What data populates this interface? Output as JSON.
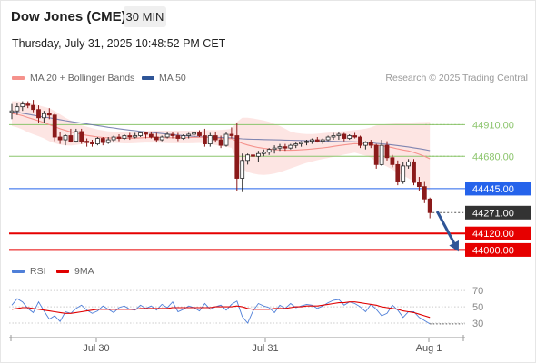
{
  "header": {
    "instrument": "Dow Jones (CME)",
    "timeframe": "30 MIN",
    "timestamp": "Thursday, July 31, 2025 10:48:52 PM CET"
  },
  "credit": "Research © 2025 Trading Central",
  "colors": {
    "candle_up": "#2b2b2b",
    "candle_down": "#8b1a1a",
    "bollinger_fill": "#fde0de",
    "ma20": "#f5928c",
    "ma50": "#6a74a8",
    "resistance": "#8cc56d",
    "pivot": "#2563eb",
    "support": "#e60000",
    "last_price_bg": "#333333",
    "arrow": "#2f5597",
    "rsi": "#4f7fd8",
    "rsi_ma": "#e00000"
  },
  "chart_data": [
    {
      "type": "candlestick",
      "legend": [
        "MA 20 + Bollinger Bands",
        "MA 50"
      ],
      "x_ticks": [
        "Jul 30",
        "Jul 31",
        "Aug 1"
      ],
      "ylim": [
        43950,
        45130
      ],
      "levels": [
        {
          "label": "44910.00",
          "value": 44910,
          "kind": "resistance"
        },
        {
          "label": "44680.00",
          "value": 44680,
          "kind": "resistance"
        },
        {
          "label": "44445.00",
          "value": 44445,
          "kind": "pivot"
        },
        {
          "label": "44120.00",
          "value": 44120,
          "kind": "support"
        },
        {
          "label": "44000.00",
          "value": 44000,
          "kind": "support"
        }
      ],
      "last_price": {
        "label": "44271.00",
        "value": 44271
      },
      "forecast_arrow": {
        "from": 44280,
        "to": 44010
      },
      "candles": [
        [
          45000,
          45060,
          44950,
          45010
        ],
        [
          45010,
          45070,
          44980,
          45040
        ],
        [
          45040,
          45080,
          45010,
          45060
        ],
        [
          45060,
          45080,
          45030,
          45050
        ],
        [
          45050,
          45090,
          45000,
          45020
        ],
        [
          45020,
          45050,
          44920,
          44960
        ],
        [
          44960,
          45010,
          44920,
          44990
        ],
        [
          44990,
          45030,
          44950,
          44980
        ],
        [
          44980,
          44990,
          44790,
          44820
        ],
        [
          44820,
          44860,
          44770,
          44800
        ],
        [
          44800,
          44840,
          44760,
          44830
        ],
        [
          44830,
          44880,
          44780,
          44790
        ],
        [
          44790,
          44880,
          44780,
          44860
        ],
        [
          44860,
          44880,
          44770,
          44790
        ],
        [
          44790,
          44810,
          44750,
          44780
        ],
        [
          44780,
          44800,
          44750,
          44770
        ],
        [
          44770,
          44820,
          44760,
          44810
        ],
        [
          44810,
          44820,
          44760,
          44780
        ],
        [
          44780,
          44820,
          44770,
          44800
        ],
        [
          44800,
          44830,
          44780,
          44820
        ],
        [
          44820,
          44840,
          44790,
          44810
        ],
        [
          44810,
          44840,
          44800,
          44830
        ],
        [
          44830,
          44850,
          44800,
          44820
        ],
        [
          44820,
          44850,
          44810,
          44830
        ],
        [
          44830,
          44860,
          44820,
          44850
        ],
        [
          44850,
          44860,
          44810,
          44840
        ],
        [
          44840,
          44860,
          44810,
          44820
        ],
        [
          44820,
          44850,
          44780,
          44800
        ],
        [
          44800,
          44830,
          44790,
          44820
        ],
        [
          44820,
          44860,
          44810,
          44840
        ],
        [
          44840,
          44860,
          44810,
          44830
        ],
        [
          44830,
          44850,
          44790,
          44810
        ],
        [
          44810,
          44840,
          44800,
          44830
        ],
        [
          44830,
          44850,
          44810,
          44840
        ],
        [
          44840,
          44860,
          44820,
          44850
        ],
        [
          44850,
          44870,
          44820,
          44830
        ],
        [
          44830,
          44880,
          44750,
          44770
        ],
        [
          44770,
          44850,
          44750,
          44830
        ],
        [
          44830,
          44860,
          44780,
          44800
        ],
        [
          44800,
          44830,
          44740,
          44760
        ],
        [
          44760,
          44860,
          44750,
          44840
        ],
        [
          44840,
          44890,
          44810,
          44830
        ],
        [
          44830,
          44920,
          44430,
          44520
        ],
        [
          44520,
          44700,
          44420,
          44650
        ],
        [
          44650,
          44700,
          44620,
          44690
        ],
        [
          44690,
          44720,
          44630,
          44680
        ],
        [
          44680,
          44720,
          44640,
          44700
        ],
        [
          44700,
          44730,
          44680,
          44710
        ],
        [
          44710,
          44740,
          44690,
          44730
        ],
        [
          44730,
          44760,
          44700,
          44740
        ],
        [
          44740,
          44770,
          44720,
          44750
        ],
        [
          44750,
          44770,
          44720,
          44740
        ],
        [
          44740,
          44770,
          44730,
          44760
        ],
        [
          44760,
          44780,
          44740,
          44770
        ],
        [
          44770,
          44790,
          44750,
          44780
        ],
        [
          44780,
          44800,
          44760,
          44790
        ],
        [
          44790,
          44810,
          44770,
          44800
        ],
        [
          44800,
          44820,
          44780,
          44790
        ],
        [
          44790,
          44810,
          44770,
          44800
        ],
        [
          44800,
          44830,
          44790,
          44820
        ],
        [
          44820,
          44850,
          44800,
          44830
        ],
        [
          44830,
          44860,
          44800,
          44840
        ],
        [
          44840,
          44850,
          44790,
          44810
        ],
        [
          44810,
          44840,
          44800,
          44830
        ],
        [
          44830,
          44850,
          44810,
          44820
        ],
        [
          44820,
          44830,
          44740,
          44760
        ],
        [
          44760,
          44790,
          44730,
          44780
        ],
        [
          44780,
          44800,
          44740,
          44760
        ],
        [
          44760,
          44770,
          44590,
          44620
        ],
        [
          44620,
          44800,
          44610,
          44760
        ],
        [
          44760,
          44790,
          44650,
          44670
        ],
        [
          44670,
          44690,
          44600,
          44620
        ],
        [
          44620,
          44650,
          44470,
          44500
        ],
        [
          44500,
          44640,
          44480,
          44610
        ],
        [
          44610,
          44660,
          44590,
          44640
        ],
        [
          44640,
          44660,
          44470,
          44490
        ],
        [
          44490,
          44530,
          44430,
          44460
        ],
        [
          44460,
          44500,
          44340,
          44370
        ],
        [
          44370,
          44380,
          44230,
          44271
        ]
      ],
      "ma20": [
        44990,
        44985,
        44975,
        44962,
        44950,
        44938,
        44925,
        44910,
        44895,
        44880,
        44868,
        44857,
        44848,
        44840,
        44832,
        44826,
        44821,
        44817,
        44814,
        44812,
        44810,
        44810,
        44811,
        44812,
        44814,
        44816,
        44817,
        44817,
        44816,
        44815,
        44815,
        44815,
        44815,
        44816,
        44818,
        44819,
        44818,
        44816,
        44813,
        44810,
        44809,
        44808,
        44790,
        44774,
        44762,
        44752,
        44744,
        44738,
        44733,
        44728,
        44726,
        44724,
        44724,
        44725,
        44727,
        44730,
        44733,
        44737,
        44741,
        44746,
        44752,
        44758,
        44763,
        44768,
        44772,
        44771,
        44770,
        44768,
        44760,
        44756,
        44750,
        44743,
        44734,
        44726,
        44719,
        44708,
        44695,
        44680,
        44662
      ],
      "bb_upper": [
        45080,
        45080,
        45075,
        45070,
        45060,
        45050,
        45040,
        45030,
        45010,
        44985,
        44960,
        44940,
        44920,
        44905,
        44895,
        44885,
        44875,
        44868,
        44862,
        44860,
        44860,
        44860,
        44860,
        44860,
        44862,
        44864,
        44866,
        44866,
        44866,
        44866,
        44866,
        44866,
        44866,
        44866,
        44867,
        44868,
        44870,
        44870,
        44870,
        44872,
        44875,
        44880,
        44930,
        44960,
        44960,
        44955,
        44948,
        44940,
        44930,
        44915,
        44900,
        44880,
        44860,
        44850,
        44845,
        44842,
        44842,
        44844,
        44848,
        44852,
        44856,
        44860,
        44863,
        44866,
        44870,
        44875,
        44880,
        44890,
        44905,
        44910,
        44915,
        44918,
        44920,
        44922,
        44924,
        44926,
        44928,
        44929,
        44930
      ],
      "bb_lower": [
        44900,
        44890,
        44875,
        44855,
        44840,
        44826,
        44810,
        44790,
        44775,
        44765,
        44760,
        44758,
        44762,
        44768,
        44772,
        44775,
        44778,
        44780,
        44780,
        44778,
        44776,
        44774,
        44774,
        44776,
        44778,
        44780,
        44780,
        44780,
        44778,
        44776,
        44775,
        44775,
        44775,
        44775,
        44776,
        44777,
        44774,
        44768,
        44762,
        44754,
        44748,
        44742,
        44650,
        44590,
        44566,
        44555,
        44547,
        44545,
        44548,
        44555,
        44565,
        44578,
        44592,
        44605,
        44620,
        44632,
        44642,
        44652,
        44660,
        44668,
        44676,
        44684,
        44692,
        44700,
        44706,
        44695,
        44685,
        44670,
        44640,
        44625,
        44605,
        44585,
        44560,
        44540,
        44520,
        44500,
        44480,
        44460,
        44430
      ],
      "ma50": [
        45005,
        45000,
        44993,
        44986,
        44979,
        44972,
        44966,
        44960,
        44953,
        44946,
        44939,
        44933,
        44927,
        44921,
        44915,
        44909,
        44903,
        44897,
        44891,
        44886,
        44880,
        44875,
        44870,
        44866,
        44861,
        44857,
        44853,
        44849,
        44845,
        44841,
        44837,
        44834,
        44831,
        44828,
        44825,
        44823,
        44821,
        44819,
        44818,
        44816,
        44815,
        44814,
        44810,
        44807,
        44805,
        44804,
        44803,
        44802,
        44801,
        44800,
        44799,
        44798,
        44797,
        44796,
        44795,
        44794,
        44793,
        44792,
        44791,
        44790,
        44789,
        44788,
        44787,
        44786,
        44785,
        44783,
        44781,
        44779,
        44774,
        44771,
        44767,
        44763,
        44758,
        44753,
        44748,
        44742,
        44736,
        44729,
        44721
      ]
    },
    {
      "type": "line",
      "legend": [
        "RSI",
        "9MA"
      ],
      "y_ticks": [
        "70",
        "50",
        "30"
      ],
      "ylim": [
        20,
        78
      ],
      "rsi": [
        52,
        60,
        56,
        48,
        43,
        56,
        45,
        35,
        39,
        32,
        44,
        42,
        48,
        52,
        46,
        42,
        45,
        51,
        47,
        43,
        49,
        51,
        47,
        46,
        52,
        48,
        51,
        46,
        53,
        49,
        56,
        44,
        47,
        51,
        49,
        45,
        54,
        47,
        50,
        52,
        46,
        53,
        57,
        38,
        30,
        45,
        54,
        51,
        49,
        43,
        52,
        48,
        54,
        49,
        51,
        53,
        52,
        48,
        51,
        55,
        58,
        59,
        52,
        56,
        54,
        50,
        44,
        53,
        47,
        39,
        42,
        52,
        46,
        37,
        44,
        44,
        37,
        33,
        29
      ],
      "rsi_ma": [
        47,
        48,
        49,
        49,
        48,
        47,
        46,
        45,
        44,
        43,
        42,
        42,
        43,
        44,
        45,
        46,
        47,
        47,
        47,
        47,
        47,
        47,
        47,
        47,
        48,
        48,
        48,
        48,
        48,
        48,
        49,
        49,
        49,
        49,
        49,
        49,
        49,
        49,
        50,
        50,
        50,
        50,
        51,
        50,
        48,
        47,
        47,
        47,
        47,
        48,
        48,
        48,
        49,
        50,
        50,
        51,
        51,
        51,
        52,
        53,
        54,
        55,
        55,
        56,
        56,
        55,
        54,
        53,
        52,
        50,
        49,
        48,
        47,
        45,
        44,
        43,
        41,
        39,
        37
      ]
    }
  ]
}
